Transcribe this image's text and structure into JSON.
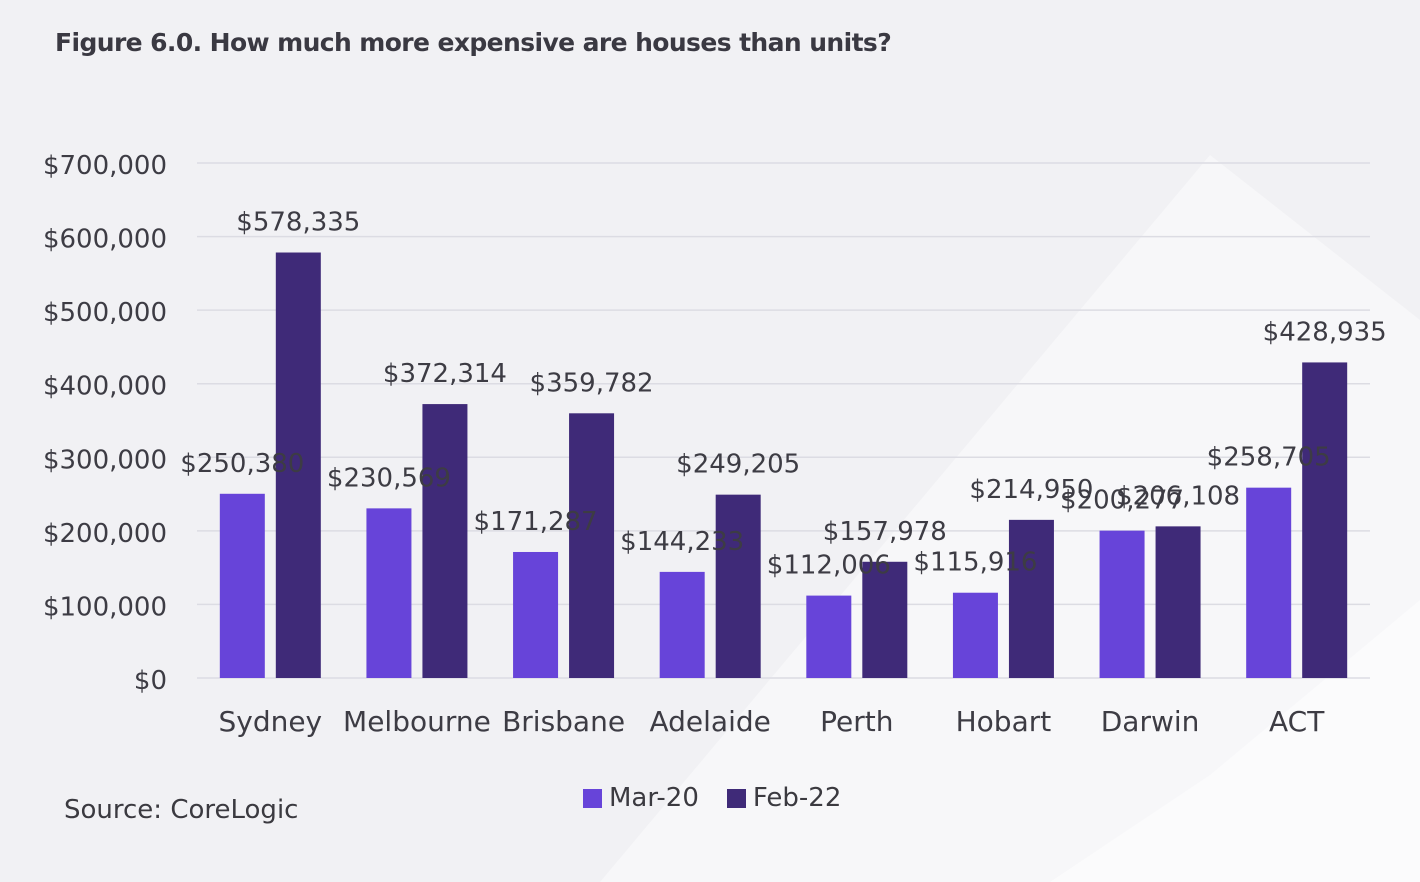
{
  "title": "Figure 6.0. How much more expensive are houses than units?",
  "source": "Source: CoreLogic",
  "colors": {
    "background": "#f1f1f4",
    "series1": "#6744d9",
    "series2": "#3f2a78",
    "grid": "#dcdce3",
    "text": "#3d3c44"
  },
  "chart_data": {
    "type": "bar",
    "title": "Figure 6.0. How much more expensive are houses than units?",
    "categories": [
      "Sydney",
      "Melbourne",
      "Brisbane",
      "Adelaide",
      "Perth",
      "Hobart",
      "Darwin",
      "ACT"
    ],
    "series": [
      {
        "name": "Mar-20",
        "color": "#6744d9",
        "values": [
          250380,
          230569,
          171287,
          144233,
          112006,
          115916,
          200277,
          258705
        ],
        "labels": [
          "$250,380",
          "$230,569",
          "$171,287",
          "$144,233",
          "$112,006",
          "$115,916",
          "$200,277",
          "$258,705"
        ]
      },
      {
        "name": "Feb-22",
        "color": "#3f2a78",
        "values": [
          578335,
          372314,
          359782,
          249205,
          157978,
          214950,
          206108,
          428935
        ],
        "labels": [
          "$578,335",
          "$372,314",
          "$359,782",
          "$249,205",
          "$157,978",
          "$214,950",
          "$206,108",
          "$428,935"
        ]
      }
    ],
    "yticks": [
      "$0",
      "$100,000",
      "$200,000",
      "$300,000",
      "$400,000",
      "$500,000",
      "$600,000",
      "$700,000"
    ],
    "ylim": [
      0,
      700000
    ],
    "grid": true,
    "legend_position": "bottom"
  }
}
